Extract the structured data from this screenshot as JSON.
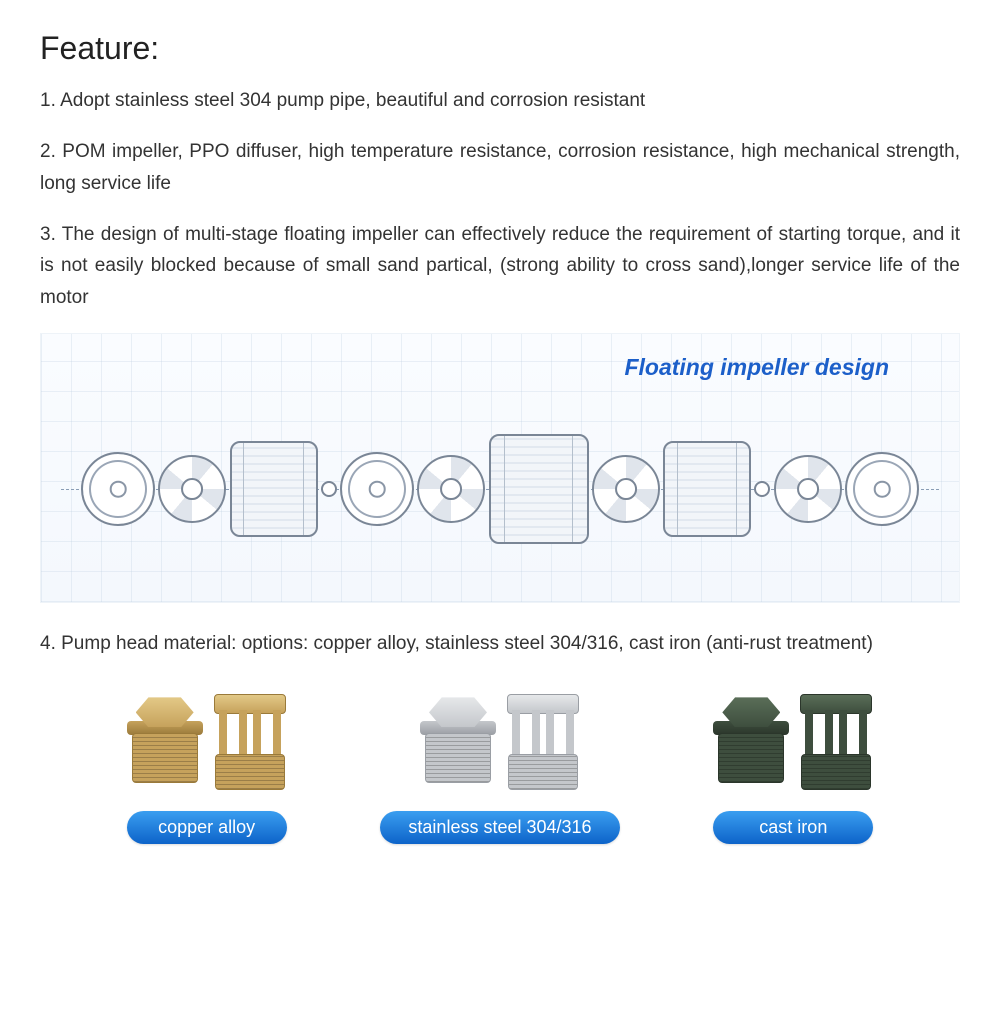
{
  "heading": "Feature:",
  "features": {
    "f1": "1. Adopt stainless steel 304 pump pipe, beautiful and corrosion resistant",
    "f2": "2. POM impeller, PPO diffuser, high temperature resistance, corrosion resistance, high mechanical strength, long service life",
    "f3": "3. The design of multi-stage floating impeller can effectively reduce the requirement of starting torque, and it is not easily blocked because of small sand partical, (strong ability to cross sand),longer service life of the motor",
    "f4": "4. Pump head material: options: copper alloy, stainless steel 304/316, cast iron (anti-rust treatment)"
  },
  "diagram": {
    "label": "Floating impeller design",
    "label_color": "#1c5fc9",
    "bg_start": "#fafcff",
    "bg_end": "#f4f8fd",
    "line_color": "#7a8696"
  },
  "materials": {
    "copper": {
      "label": "copper alloy",
      "base": "#c6a25c",
      "light": "#e3c987",
      "dark": "#9a7a3a"
    },
    "steel": {
      "label": "stainless steel 304/316",
      "base": "#c4c7cb",
      "light": "#e6e8ea",
      "dark": "#9a9ea4"
    },
    "iron": {
      "label": "cast iron",
      "base": "#3e4e3e",
      "light": "#5a6e58",
      "dark": "#2b362b"
    }
  },
  "pill_gradient_start": "#3a9ef0",
  "pill_gradient_end": "#0d63c9",
  "text_color": "#333333"
}
